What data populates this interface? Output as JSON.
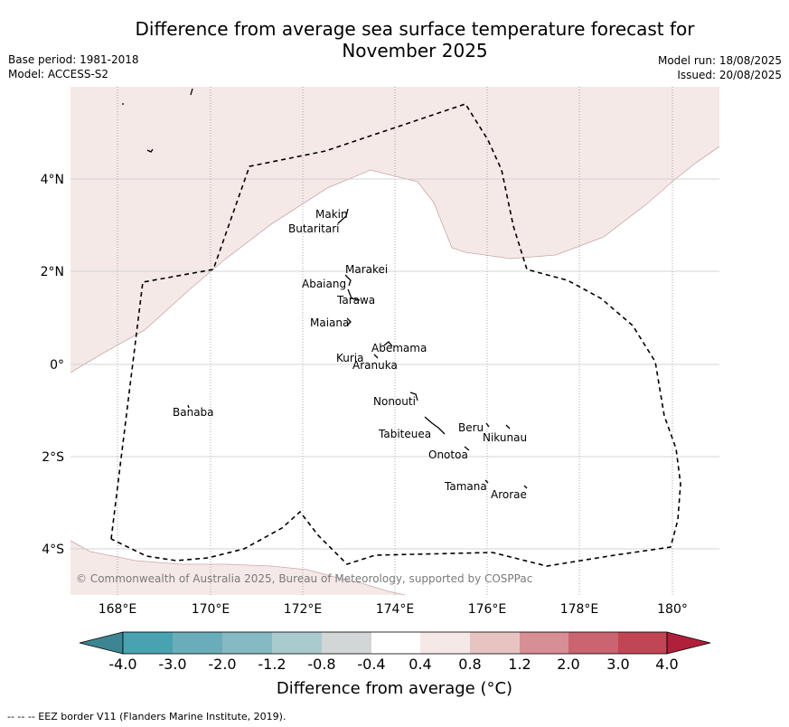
{
  "title_line1": "Difference from average sea surface temperature forecast for",
  "title_line2": "November 2025",
  "base_period": "Base period: 1981-2018",
  "model": "Model: ACCESS-S2",
  "model_run": "Model run: 18/08/2025",
  "issued": "Issued: 20/08/2025",
  "copyright": "© Commonwealth of Australia 2025, Bureau of Meteorology, supported by COSPPac",
  "colorbar_title": "Difference from average (°C)",
  "footnote": "-- -- -- EEZ border V11 (Flanders Marine Institute, 2019).",
  "map": {
    "lon_range": [
      167,
      181
    ],
    "lat_range": [
      -5,
      6
    ],
    "lon_ticks": [
      "168°E",
      "170°E",
      "172°E",
      "174°E",
      "176°E",
      "178°E",
      "180°"
    ],
    "lat_ticks": [
      "4°N",
      "2°N",
      "0°",
      "2°S",
      "4°S"
    ],
    "islands": [
      "Makin",
      "Butaritari",
      "Marakei",
      "Abaiang",
      "Tarawa",
      "Maiana",
      "Abemama",
      "Kuria",
      "Aranuka",
      "Banaba",
      "Nonouti",
      "Tabiteuea",
      "Beru",
      "Nikunau",
      "Onotoa",
      "Tamana",
      "Arorae"
    ]
  },
  "colorbar": {
    "labels": [
      "-4.0",
      "-3.0",
      "-2.0",
      "-1.2",
      "-0.8",
      "-0.4",
      "0.4",
      "0.8",
      "1.2",
      "2.0",
      "3.0",
      "4.0"
    ],
    "colors": [
      "#3e8593",
      "#49a2b0",
      "#6aadba",
      "#86b9c2",
      "#a9cbce",
      "#d3d6d6",
      "#ffffff",
      "#f5e9e8",
      "#e7c4c1",
      "#d78e94",
      "#c96470",
      "#c04656",
      "#b0203a"
    ]
  }
}
